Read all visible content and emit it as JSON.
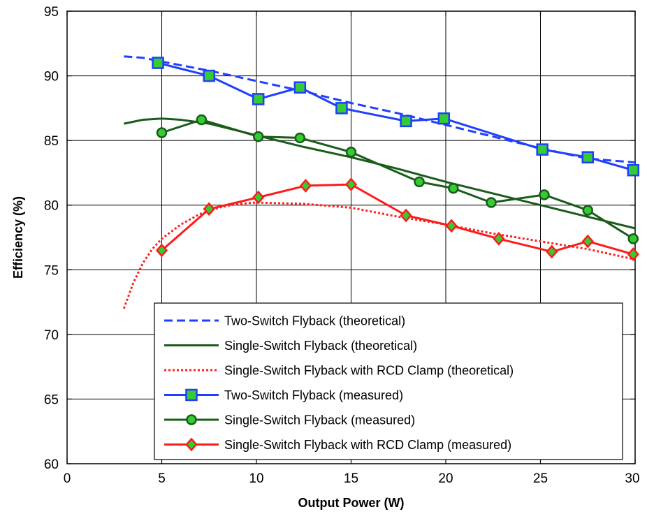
{
  "chart_data": {
    "type": "line",
    "xlabel": "Output Power (W)",
    "ylabel": "Efficiency (%)",
    "xlim": [
      0,
      30
    ],
    "ylim": [
      60,
      95
    ],
    "xticks": [
      "0",
      "5",
      "10",
      "15",
      "20",
      "25",
      "30"
    ],
    "yticks": [
      "60",
      "65",
      "70",
      "75",
      "80",
      "85",
      "90",
      "95"
    ],
    "grid": true,
    "legend_position": "lower-right",
    "series": [
      {
        "name": "Two-Switch Flyback (theoretical)",
        "style": "dashed",
        "color": "#1f3fff",
        "marker": "none",
        "x": [
          3,
          4,
          5,
          7.5,
          10,
          12.5,
          15,
          17.5,
          20,
          22.5,
          25,
          27.5,
          30
        ],
        "y": [
          91.5,
          91.4,
          91.1,
          90.4,
          89.6,
          88.8,
          87.9,
          87.1,
          86.2,
          85.3,
          84.4,
          83.6,
          83.3
        ]
      },
      {
        "name": "Single-Switch Flyback (theoretical)",
        "style": "solid",
        "color": "#1a5c1a",
        "marker": "none",
        "x": [
          3,
          4,
          5,
          6,
          7.5,
          10,
          12.5,
          15,
          17.5,
          20,
          22.5,
          25,
          27.5,
          30
        ],
        "y": [
          86.3,
          86.6,
          86.7,
          86.6,
          86.3,
          85.4,
          84.5,
          83.7,
          82.8,
          81.8,
          80.9,
          80.0,
          79.1,
          78.2
        ]
      },
      {
        "name": "Single-Switch Flyback with RCD Clamp (theoretical)",
        "style": "dotted",
        "color": "#ff2020",
        "marker": "none",
        "x": [
          3,
          3.5,
          4,
          4.5,
          5,
          6,
          7,
          8,
          9,
          10,
          12.5,
          15,
          17.5,
          20,
          22.5,
          25,
          27.5,
          30
        ],
        "y": [
          72.0,
          74.0,
          75.5,
          76.6,
          77.4,
          78.5,
          79.3,
          79.8,
          80.1,
          80.2,
          80.1,
          79.8,
          79.1,
          78.5,
          77.8,
          77.2,
          76.6,
          75.8
        ]
      },
      {
        "name": "Two-Switch Flyback (measured)",
        "style": "solid",
        "color": "#1f3fff",
        "marker": "square",
        "marker_fill": "#33cc33",
        "x": [
          4.8,
          7.5,
          10.1,
          12.3,
          14.5,
          17.9,
          19.9,
          25.1,
          27.5,
          29.9
        ],
        "y": [
          91.0,
          90.0,
          88.2,
          89.1,
          87.5,
          86.5,
          86.7,
          84.3,
          83.7,
          82.7
        ]
      },
      {
        "name": "Single-Switch Flyback (measured)",
        "style": "solid",
        "color": "#1a5c1a",
        "marker": "circle",
        "marker_fill": "#33cc33",
        "x": [
          5.0,
          7.1,
          10.1,
          12.3,
          15.0,
          18.6,
          20.4,
          22.4,
          25.2,
          27.5,
          29.9
        ],
        "y": [
          85.6,
          86.6,
          85.3,
          85.2,
          84.1,
          81.8,
          81.3,
          80.2,
          80.8,
          79.6,
          77.4
        ]
      },
      {
        "name": "Single-Switch Flyback with RCD Clamp (measured)",
        "style": "solid",
        "color": "#ff1a1a",
        "marker": "diamond",
        "marker_fill": "#33cc33",
        "x": [
          5.0,
          7.5,
          10.1,
          12.6,
          15.0,
          17.9,
          20.3,
          22.8,
          25.6,
          27.5,
          29.9
        ],
        "y": [
          76.5,
          79.7,
          80.6,
          81.5,
          81.6,
          79.2,
          78.4,
          77.4,
          76.4,
          77.2,
          76.2
        ]
      }
    ]
  }
}
